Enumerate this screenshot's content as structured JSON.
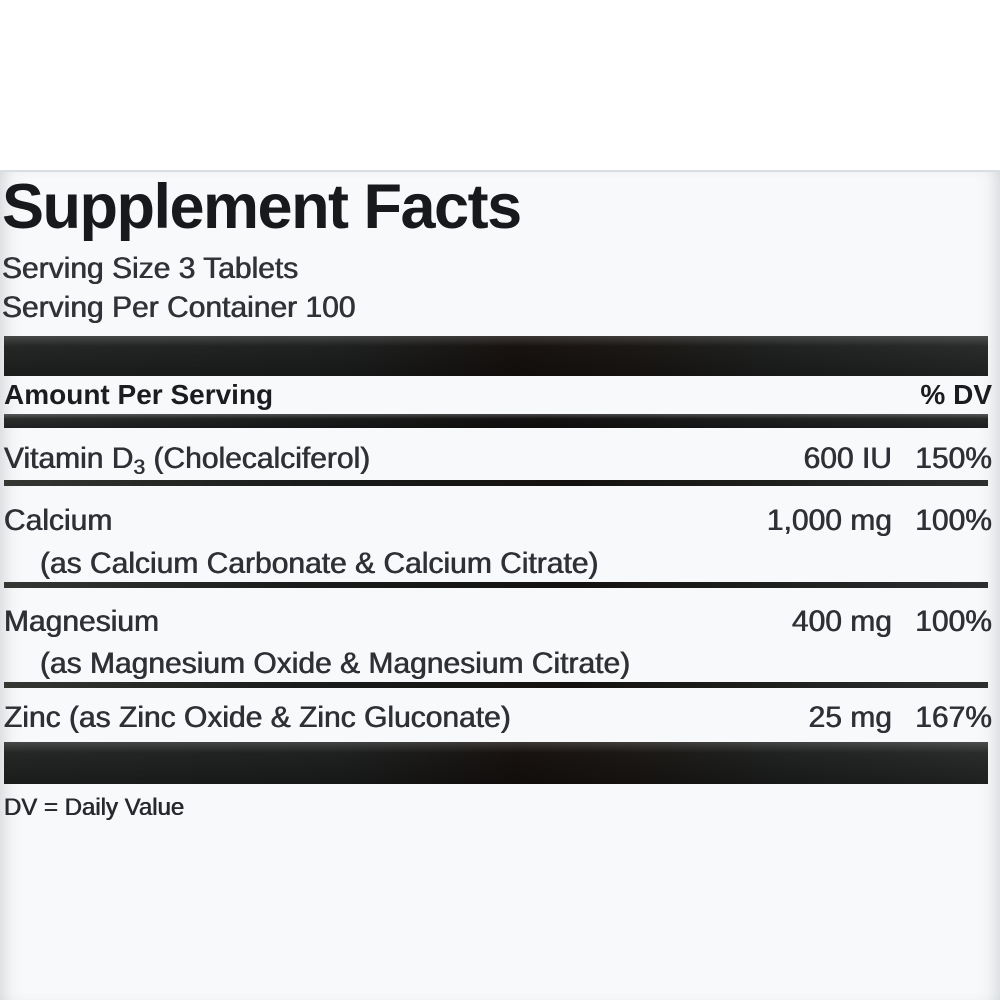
{
  "label": {
    "title": "Supplement Facts",
    "serving_size": "Serving Size 3 Tablets",
    "servings_per_container": "Serving Per Container 100",
    "header": {
      "amount": "Amount Per Serving",
      "dv": "% DV"
    },
    "rows": [
      {
        "name_pre": "Vitamin D",
        "name_sub": "3",
        "name_post": " (Cholecalciferol)",
        "amount": "600 IU",
        "dv": "150%"
      },
      {
        "name": "Calcium",
        "note": "(as Calcium Carbonate & Calcium Citrate)",
        "amount": "1,000 mg",
        "dv": "100%"
      },
      {
        "name": "Magnesium",
        "note": "(as Magnesium Oxide & Magnesium Citrate)",
        "amount": "400 mg",
        "dv": "100%"
      },
      {
        "name": "Zinc (as Zinc Oxide & Zinc Gluconate)",
        "amount": "25 mg",
        "dv": "167%"
      }
    ],
    "footnote": "DV = Daily Value",
    "colors": {
      "bar": "#1b1714",
      "text": "#2e3036",
      "panel_background": "#f8f9fa",
      "panel_top_edge": "#d9dee4"
    }
  }
}
